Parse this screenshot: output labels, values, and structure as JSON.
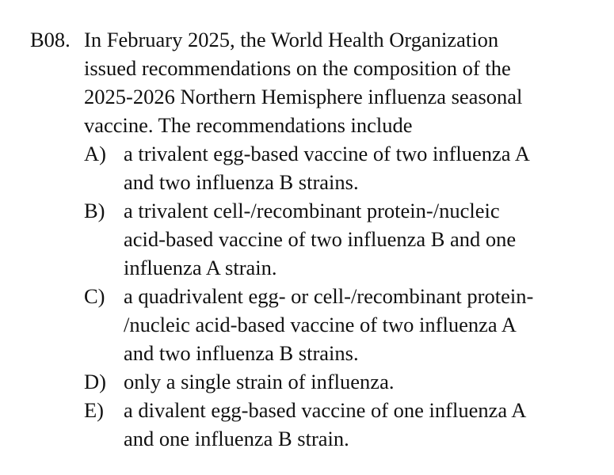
{
  "question": {
    "number": "B08.",
    "stem_lines": [
      "In February 2025, the World Health Organization",
      "issued recommendations on the composition of the",
      "2025-2026 Northern Hemisphere influenza seasonal",
      "vaccine. The recommendations include"
    ],
    "choices": [
      {
        "letter": "A)",
        "lines": [
          "a trivalent egg-based vaccine of two influenza A",
          "and two influenza B strains."
        ]
      },
      {
        "letter": "B)",
        "lines": [
          "a trivalent cell-/recombinant protein-/nucleic",
          "acid-based vaccine of two influenza B and one",
          "influenza A strain."
        ]
      },
      {
        "letter": "C)",
        "lines": [
          "a quadrivalent egg- or cell-/recombinant protein-",
          "/nucleic acid-based vaccine of two influenza A",
          "and two influenza B strains."
        ]
      },
      {
        "letter": "D)",
        "lines": [
          "only a single strain of influenza."
        ]
      },
      {
        "letter": "E)",
        "lines": [
          "a divalent egg-based vaccine of one influenza A",
          "and one influenza B strain."
        ]
      }
    ]
  }
}
